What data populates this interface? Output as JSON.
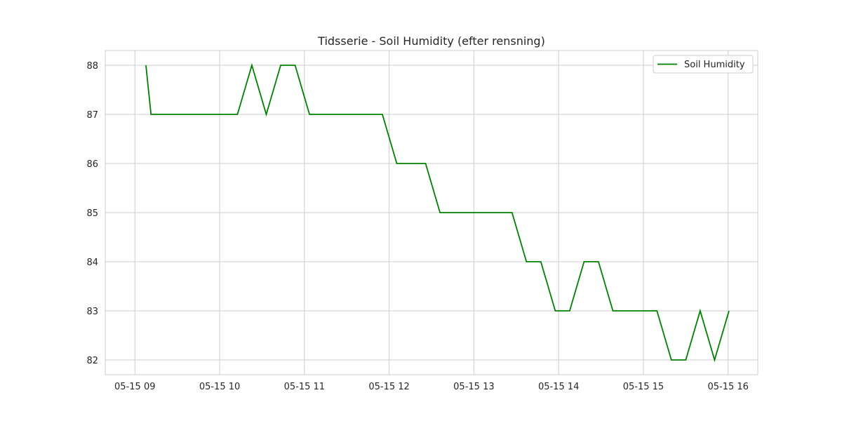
{
  "chart_data": {
    "type": "line",
    "title": "Tidsserie - Soil Humidity (efter rensning)",
    "xlabel": "",
    "ylabel": "",
    "x_unit": "hours since 05-15 00:00",
    "xlim": [
      8.65,
      16.35
    ],
    "ylim": [
      81.7,
      88.3
    ],
    "grid": true,
    "legend_position": "top-right",
    "x_ticks": [
      {
        "value": 9,
        "label": "05-15 09"
      },
      {
        "value": 10,
        "label": "05-15 10"
      },
      {
        "value": 11,
        "label": "05-15 11"
      },
      {
        "value": 12,
        "label": "05-15 12"
      },
      {
        "value": 13,
        "label": "05-15 13"
      },
      {
        "value": 14,
        "label": "05-15 14"
      },
      {
        "value": 15,
        "label": "05-15 15"
      },
      {
        "value": 16,
        "label": "05-15 16"
      }
    ],
    "y_ticks": [
      {
        "value": 82,
        "label": "82"
      },
      {
        "value": 83,
        "label": "83"
      },
      {
        "value": 84,
        "label": "84"
      },
      {
        "value": 85,
        "label": "85"
      },
      {
        "value": 86,
        "label": "86"
      },
      {
        "value": 87,
        "label": "87"
      },
      {
        "value": 88,
        "label": "88"
      }
    ],
    "series": [
      {
        "name": "Soil Humidity",
        "color": "#008000",
        "x": [
          9.13,
          9.19,
          10.21,
          10.38,
          10.55,
          10.72,
          10.89,
          11.06,
          11.92,
          12.09,
          12.43,
          12.6,
          13.45,
          13.62,
          13.79,
          13.96,
          14.13,
          14.3,
          14.47,
          14.64,
          15.16,
          15.33,
          15.5,
          15.67,
          15.84,
          16.01
        ],
        "y": [
          88,
          87,
          87,
          88,
          87,
          88,
          88,
          87,
          87,
          86,
          86,
          85,
          85,
          84,
          84,
          83,
          83,
          84,
          84,
          83,
          83,
          82,
          82,
          83,
          82,
          83
        ]
      }
    ]
  }
}
